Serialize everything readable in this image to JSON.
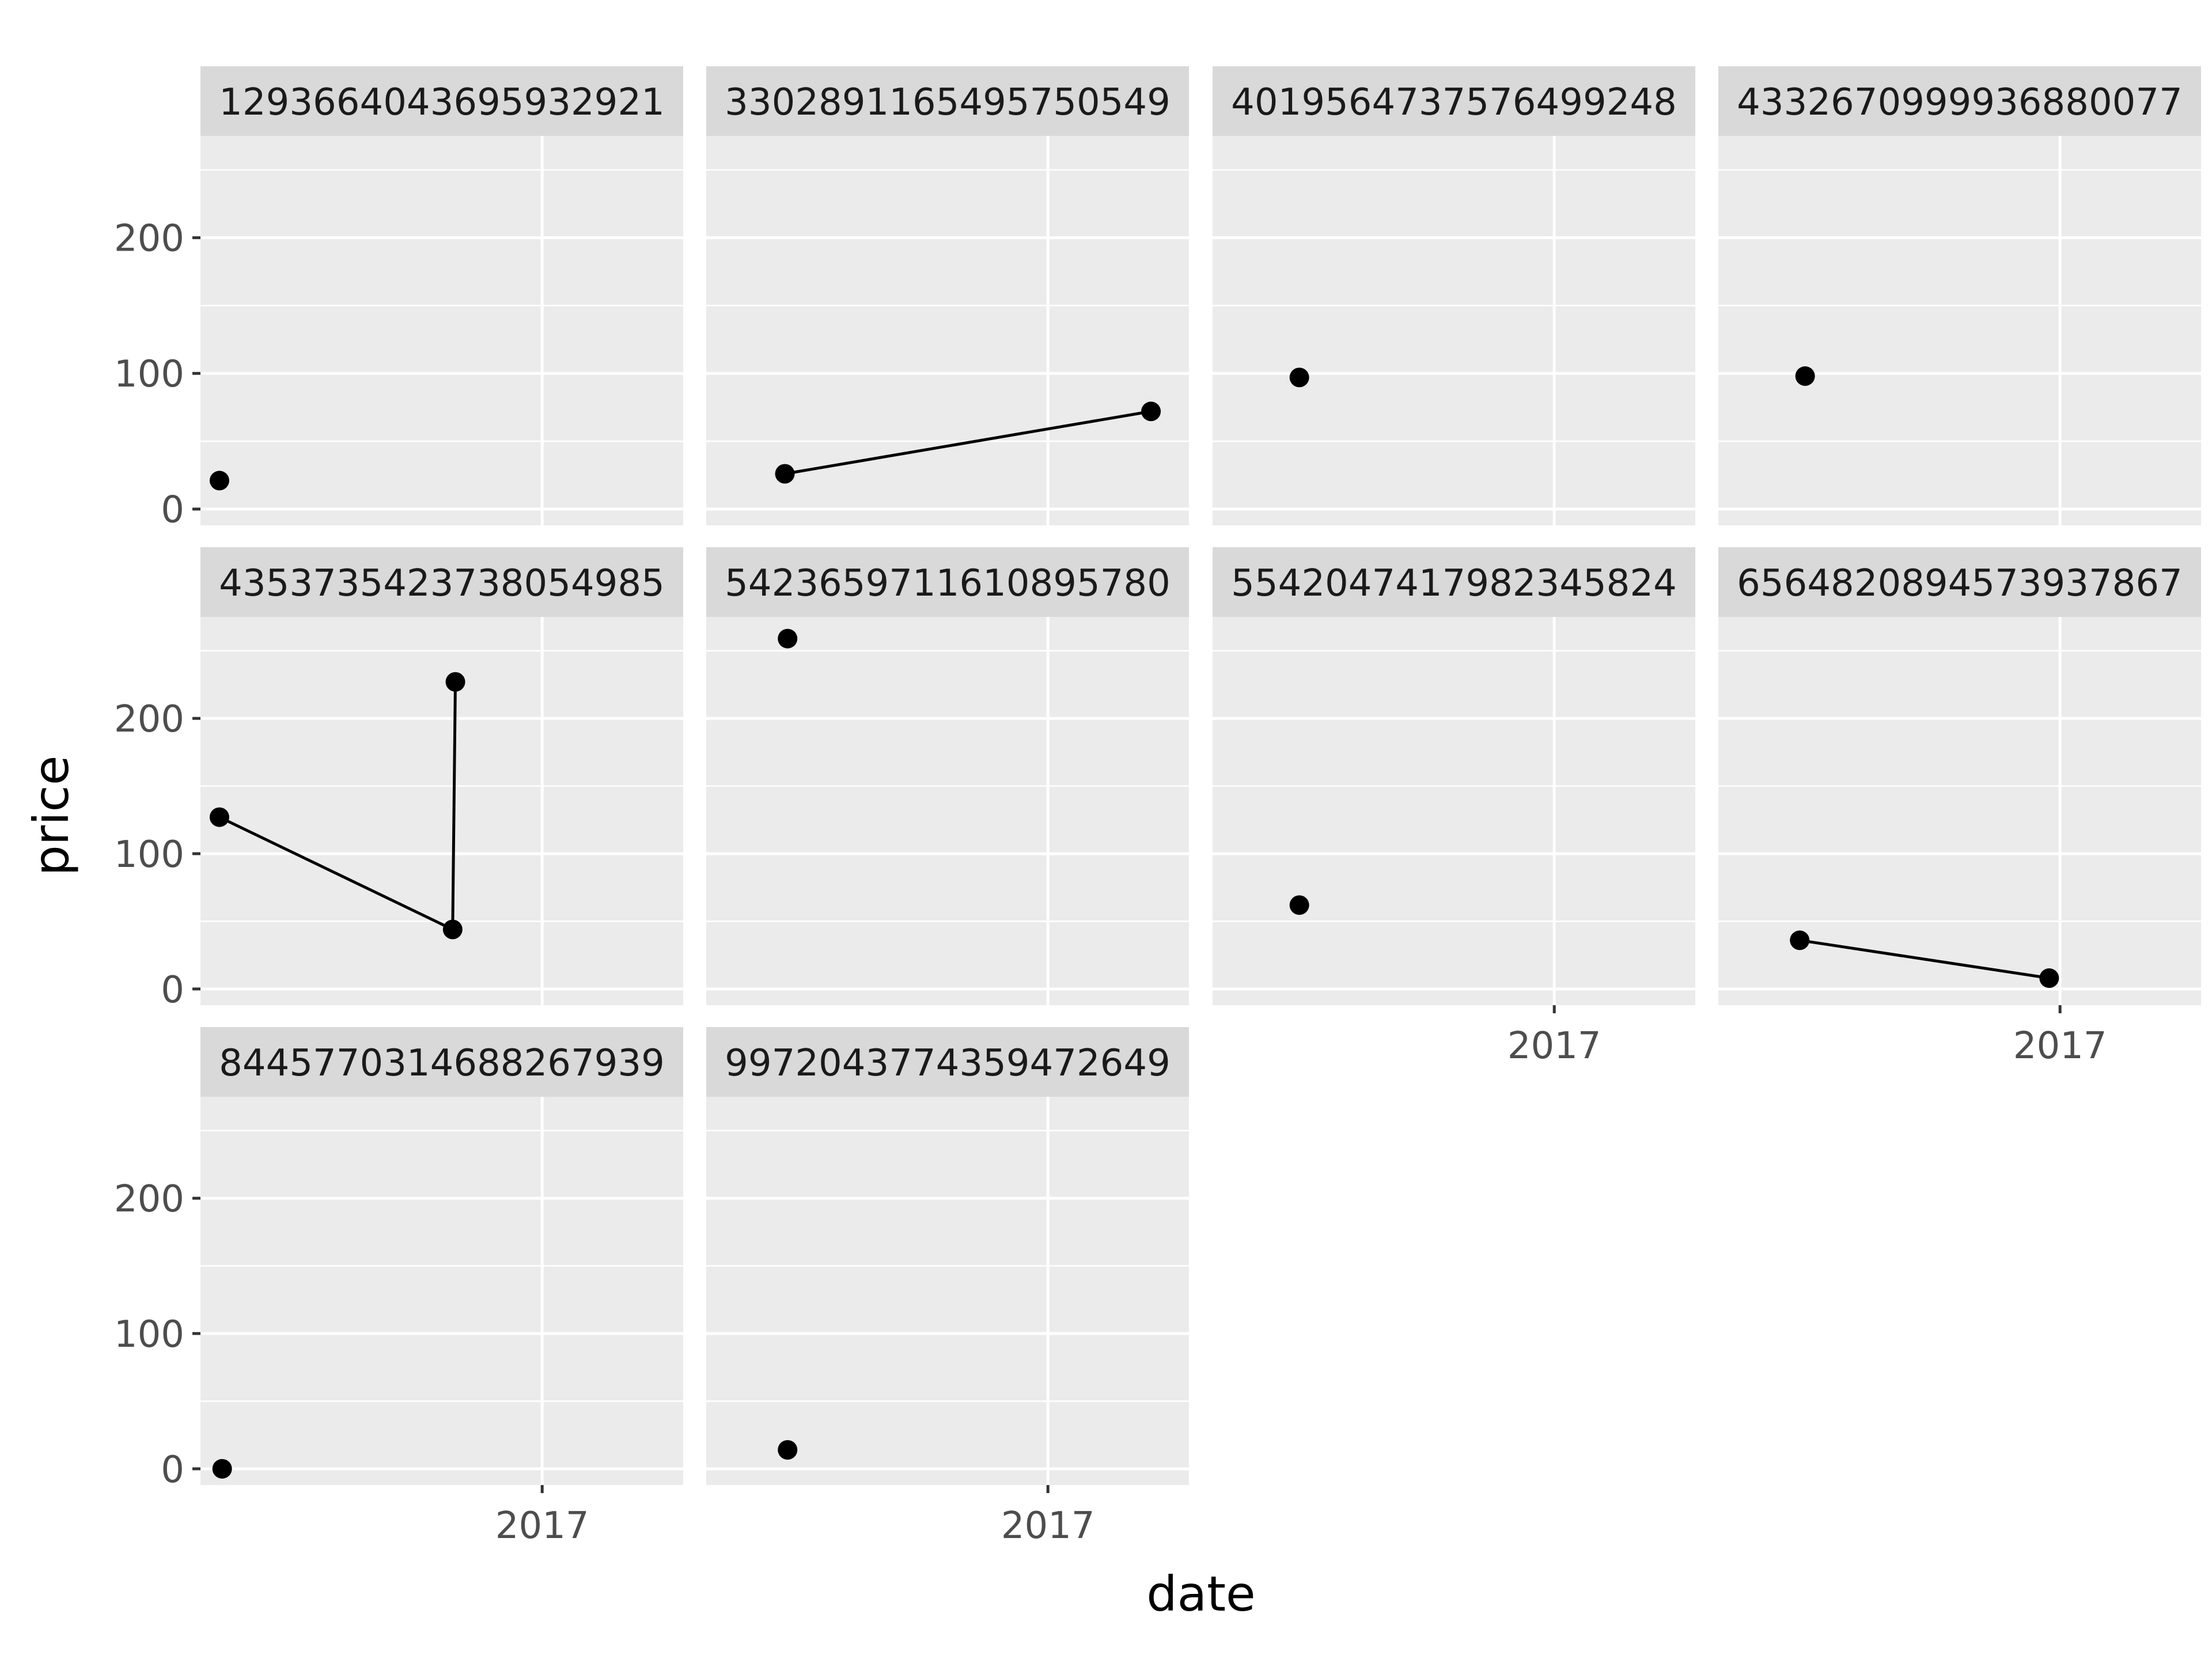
{
  "chart_data": {
    "type": "line",
    "xlabel": "date",
    "ylabel": "price",
    "ylim": [
      -12,
      275
    ],
    "y_ticks": [
      0,
      100,
      200
    ],
    "x_ticks": [
      "2017"
    ],
    "facets": [
      {
        "label": "1293664043695932921",
        "points": [
          {
            "x": "2016-09-04",
            "y": 21
          }
        ]
      },
      {
        "label": "3302891165495750549",
        "points": [
          {
            "x": "2016-09-26",
            "y": 26
          },
          {
            "x": "2017-02-08",
            "y": 72
          }
        ]
      },
      {
        "label": "4019564737576499248",
        "points": [
          {
            "x": "2016-09-29",
            "y": 97
          }
        ]
      },
      {
        "label": "4332670999936880077",
        "points": [
          {
            "x": "2016-09-29",
            "y": 98
          }
        ]
      },
      {
        "label": "4353735423738054985",
        "points": [
          {
            "x": "2016-09-04",
            "y": 127
          },
          {
            "x": "2016-11-29",
            "y": 44
          },
          {
            "x": "2016-11-30",
            "y": 227
          }
        ]
      },
      {
        "label": "5423659711610895780",
        "points": [
          {
            "x": "2016-09-27",
            "y": 259
          }
        ]
      },
      {
        "label": "5542047417982345824",
        "points": [
          {
            "x": "2016-09-29",
            "y": 62
          }
        ]
      },
      {
        "label": "6564820894573937867",
        "points": [
          {
            "x": "2016-09-27",
            "y": 36
          },
          {
            "x": "2016-12-28",
            "y": 8
          }
        ]
      },
      {
        "label": "8445770314688267939",
        "points": [
          {
            "x": "2016-09-05",
            "y": 0
          }
        ]
      },
      {
        "label": "9972043774359472649",
        "points": [
          {
            "x": "2016-09-27",
            "y": 14
          }
        ]
      }
    ]
  }
}
